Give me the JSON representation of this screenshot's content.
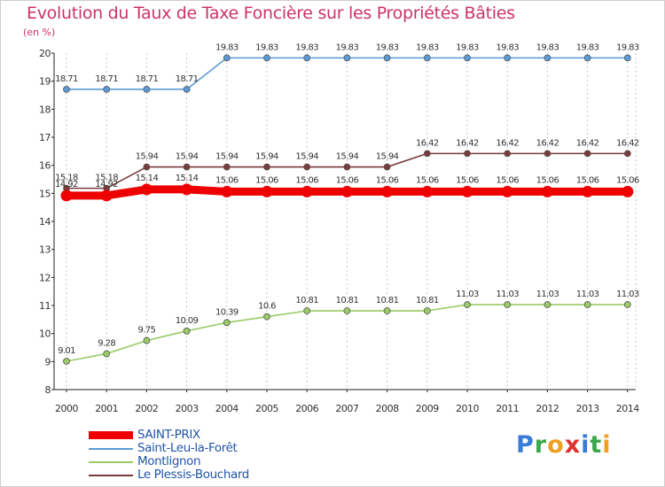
{
  "header": {
    "title": "Evolution du Taux de Taxe Foncière sur les Propriétés Bâties",
    "unit": "(en %)"
  },
  "logo": {
    "text": "Proxiti",
    "letters": [
      {
        "ch": "P",
        "color": "#3a7bd5"
      },
      {
        "ch": "r",
        "color": "#3aa84a"
      },
      {
        "ch": "o",
        "color": "#f0a020"
      },
      {
        "ch": "x",
        "color": "#e03030"
      },
      {
        "ch": "i",
        "color": "#3a7bd5"
      },
      {
        "ch": "t",
        "color": "#3aa84a"
      },
      {
        "ch": "i",
        "color": "#f0a020"
      }
    ]
  },
  "chart_data": {
    "type": "line",
    "title": "Evolution du Taux de Taxe Foncière sur les Propriétés Bâties",
    "ylabel": "(en %)",
    "xlabel": "",
    "ylim": [
      8,
      20
    ],
    "yticks": [
      8,
      9,
      10,
      11,
      12,
      13,
      14,
      15,
      16,
      17,
      18,
      19,
      20
    ],
    "grid": "vertical",
    "legend_position": "bottom-left",
    "categories": [
      "2000",
      "2001",
      "2002",
      "2003",
      "2004",
      "2005",
      "2006",
      "2007",
      "2008",
      "2009",
      "2010",
      "2011",
      "2012",
      "2013",
      "2014"
    ],
    "series": [
      {
        "name": "SAINT-PRIX",
        "color": "#ee0000",
        "values": [
          14.92,
          14.92,
          15.14,
          15.14,
          15.06,
          15.06,
          15.06,
          15.06,
          15.06,
          15.06,
          15.06,
          15.06,
          15.06,
          15.06,
          15.06
        ],
        "labels": [
          "14.92",
          "14.92",
          "15.14",
          "15.14",
          "15.06",
          "15.06",
          "15.06",
          "15.06",
          "15.06",
          "15.06",
          "15.06",
          "15.06",
          "15.06",
          "15.06",
          "15.06"
        ]
      },
      {
        "name": "Saint-Leu-la-Forêt",
        "color": "#5b9bd5",
        "values": [
          18.71,
          18.71,
          18.71,
          18.71,
          19.83,
          19.83,
          19.83,
          19.83,
          19.83,
          19.83,
          19.83,
          19.83,
          19.83,
          19.83,
          19.83
        ],
        "labels": [
          "18.71",
          "18.71",
          "18.71",
          "18.71",
          "19.83",
          "19.83",
          "19.83",
          "19.83",
          "19.83",
          "19.83",
          "19.83",
          "19.83",
          "19.83",
          "19.83",
          "19.83"
        ]
      },
      {
        "name": "Montlignon",
        "color": "#99cc66",
        "values": [
          9.01,
          9.28,
          9.75,
          10.09,
          10.39,
          10.6,
          10.81,
          10.81,
          10.81,
          10.81,
          11.03,
          11.03,
          11.03,
          11.03,
          11.03
        ],
        "labels": [
          "9.01",
          "9.28",
          "9.75",
          "10.09",
          "10.39",
          "10.6",
          "10.81",
          "10.81",
          "10.81",
          "10.81",
          "11.03",
          "11.03",
          "11.03",
          "11.03",
          "11.03"
        ]
      },
      {
        "name": "Le Plessis-Bouchard",
        "color": "#7a3b3b",
        "values": [
          15.18,
          15.18,
          15.94,
          15.94,
          15.94,
          15.94,
          15.94,
          15.94,
          15.94,
          16.42,
          16.42,
          16.42,
          16.42,
          16.42,
          16.42
        ],
        "labels": [
          "15.18",
          "15.18",
          "15.94",
          "15.94",
          "15.94",
          "15.94",
          "15.94",
          "15.94",
          "15.94",
          "16.42",
          "16.42",
          "16.42",
          "16.42",
          "16.42",
          "16.42"
        ]
      }
    ]
  }
}
